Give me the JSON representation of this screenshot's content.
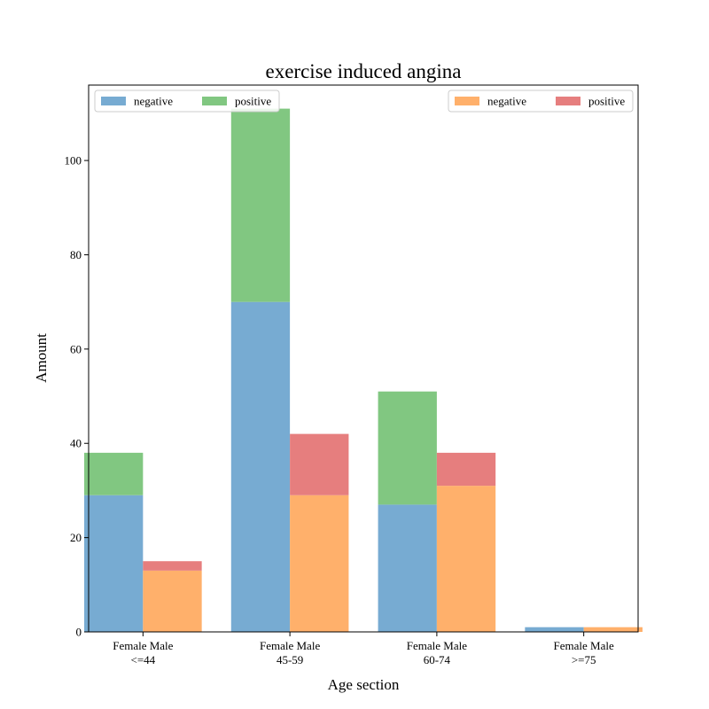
{
  "chart_data": {
    "type": "bar",
    "stacked": true,
    "grouped": true,
    "title": "exercise induced angina",
    "xlabel": "Age section",
    "ylabel": "Amount",
    "ylim": [
      0,
      116
    ],
    "yticks": [
      0,
      20,
      40,
      60,
      80,
      100
    ],
    "categories": [
      "<=44",
      "45-59",
      "60-74",
      ">=75"
    ],
    "subgroup_label": "Female Male",
    "groups": [
      {
        "name": "Female",
        "legend_position": "top-left",
        "series": [
          {
            "name": "negative",
            "color": "#77abd2",
            "values": [
              29,
              70,
              27,
              1
            ]
          },
          {
            "name": "positive",
            "color": "#81c781",
            "values": [
              9,
              41,
              24,
              0
            ]
          }
        ]
      },
      {
        "name": "Male",
        "legend_position": "top-right",
        "series": [
          {
            "name": "negative",
            "color": "#ffb06b",
            "values": [
              13,
              29,
              31,
              1
            ]
          },
          {
            "name": "positive",
            "color": "#e67e7e",
            "values": [
              2,
              13,
              7,
              0
            ]
          }
        ]
      }
    ],
    "grid": false
  }
}
